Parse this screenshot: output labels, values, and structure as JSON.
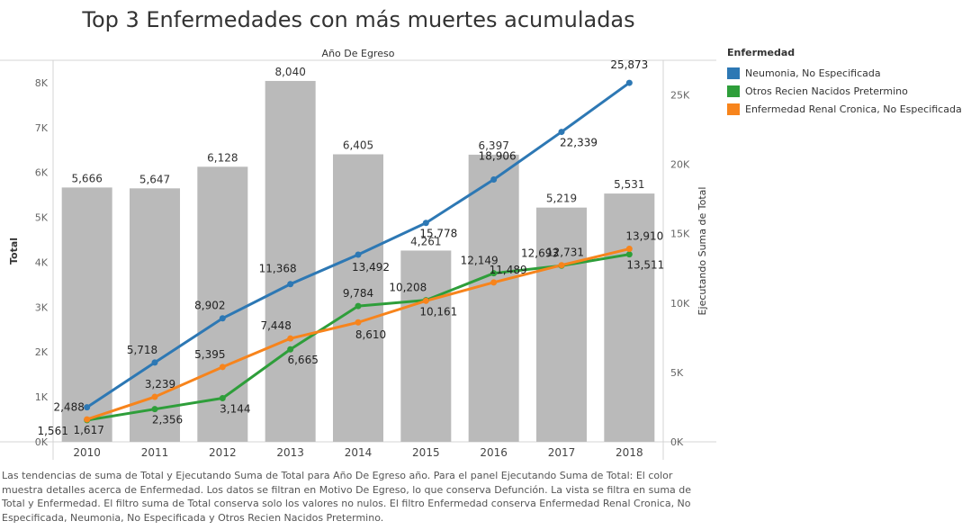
{
  "chart_data": {
    "type": "bar",
    "title": "Top 3 Enfermedades con más muertes acumuladas",
    "header": "Año De Egreso",
    "categories": [
      "2010",
      "2011",
      "2012",
      "2013",
      "2014",
      "2015",
      "2016",
      "2017",
      "2018"
    ],
    "bar_series": {
      "name": "Total",
      "values": [
        5666,
        5647,
        6128,
        8040,
        6405,
        4261,
        6397,
        5219,
        5531
      ],
      "labels": [
        "5,666",
        "5,647",
        "6,128",
        "8,040",
        "6,405",
        "4,261",
        "6,397",
        "5,219",
        "5,531"
      ],
      "color": "#bababa"
    },
    "left_axis": {
      "label": "Total",
      "range": [
        0,
        8500
      ],
      "ticks": [
        0,
        1000,
        2000,
        3000,
        4000,
        5000,
        6000,
        7000,
        8000
      ],
      "tick_labels": [
        "0K",
        "1K",
        "2K",
        "3K",
        "4K",
        "5K",
        "6K",
        "7K",
        "8K"
      ]
    },
    "right_axis": {
      "label": "Ejecutando Suma de Total",
      "range": [
        0,
        27500
      ],
      "ticks": [
        0,
        5000,
        10000,
        15000,
        20000,
        25000
      ],
      "tick_labels": [
        "0K",
        "5K",
        "10K",
        "15K",
        "20K",
        "25K"
      ]
    },
    "line_series": [
      {
        "name": "Neumonia, No Especificada",
        "color": "#2d78b4",
        "values": [
          2488,
          5718,
          8902,
          11368,
          13492,
          15778,
          18906,
          22339,
          25873
        ],
        "labels": [
          "2,488",
          "5,718",
          "8,902",
          "11,368",
          "13,492",
          "15,778",
          "18,906",
          "22,339",
          "25,873"
        ]
      },
      {
        "name": "Otros Recien Nacidos Pretermino",
        "color": "#2e9e3a",
        "values": [
          1561,
          2356,
          3144,
          6665,
          9784,
          10208,
          12149,
          12693,
          13511
        ],
        "labels": [
          "1,561",
          "2,356",
          "3,144",
          "6,665",
          "9,784",
          "10,208",
          "12,149",
          "12,693",
          "13,511"
        ]
      },
      {
        "name": "Enfermedad Renal Cronica, No Especificada",
        "color": "#f7841c",
        "values": [
          1617,
          3239,
          5395,
          7448,
          8610,
          10161,
          11489,
          12731,
          13910
        ],
        "labels": [
          "1,617",
          "3,239",
          "5,395",
          "7,448",
          "8,610",
          "10,161",
          "11,489",
          "12,731",
          "13,910"
        ]
      }
    ],
    "legend_title": "Enfermedad",
    "legend_position": "right"
  },
  "caption": "Las tendencias de suma de Total y Ejecutando Suma de Total para Año De Egreso año.  Para el panel Ejecutando Suma de Total:  El color muestra detalles acerca de Enfermedad. Los datos se filtran en Motivo De Egreso, lo que conserva Defunción. La vista se filtra en suma de Total y Enfermedad. El filtro suma de Total conserva solo los valores no nulos. El filtro Enfermedad conserva Enfermedad Renal Cronica, No Especificada, Neumonia, No Especificada y Otros Recien Nacidos Pretermino."
}
